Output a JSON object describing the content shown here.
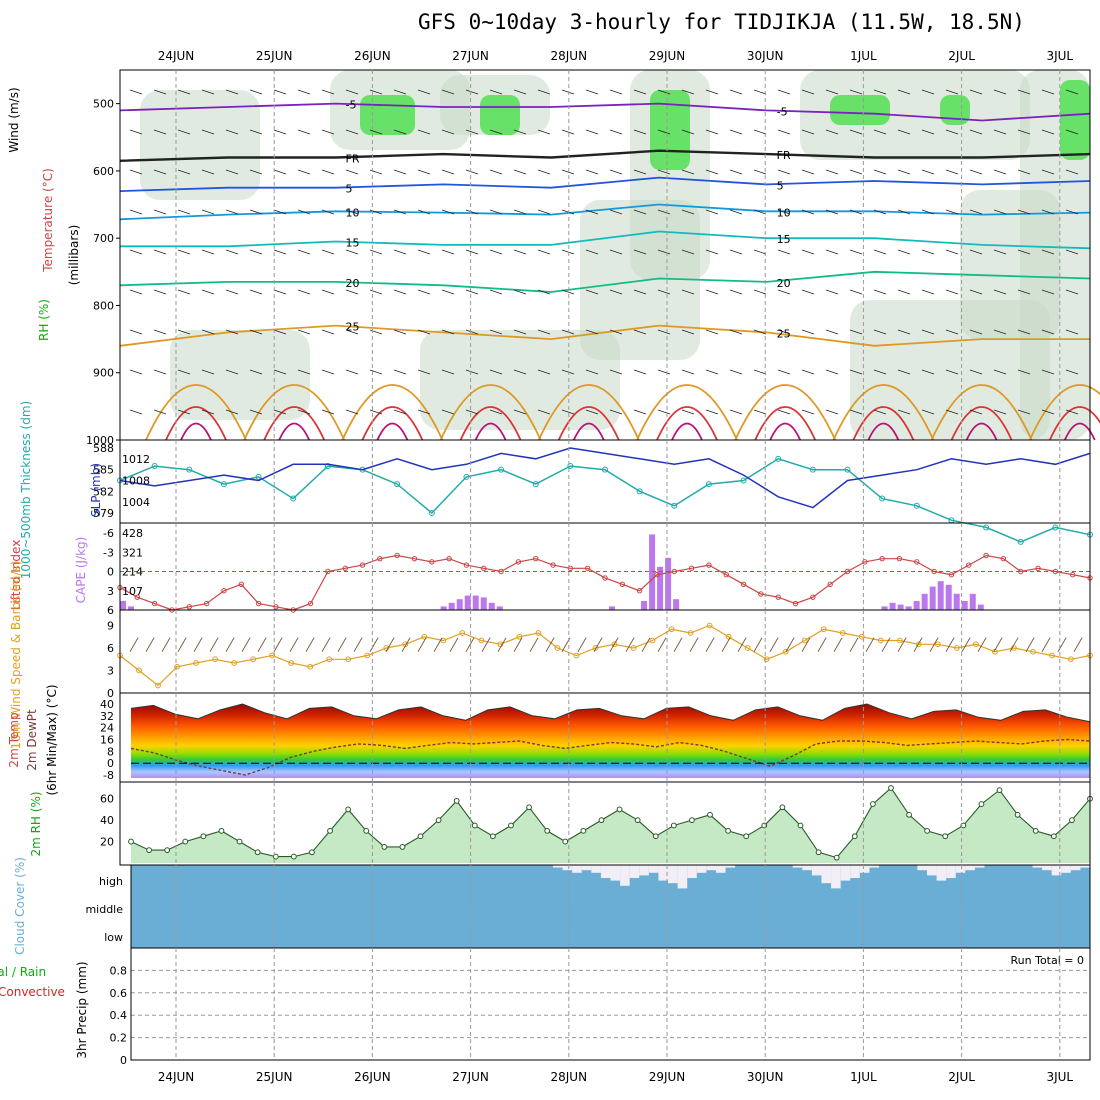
{
  "title": "GFS 0~10day 3-hourly for TIDJIKJA (11.5W, 18.5N)",
  "colors": {
    "frame": "#000000",
    "grid": "#9a9a9a",
    "temp": "#cc4444",
    "cape": "#bb77ee",
    "rh": "#11aa11",
    "thick": "#22aaaa",
    "slp": "#2233bb",
    "wind": "#e0a020",
    "cloud": "#6aaed6",
    "precip_conv": "#dd2222"
  },
  "chart_data": [
    {
      "type": "line",
      "panel": "cross-section",
      "labels": {
        "wind": "Wind (m/s)",
        "temperature": "Temperature (°C)",
        "rh": "RH (%)",
        "units": "(millibars)"
      },
      "x": [
        "24JUN",
        "25JUN",
        "26JUN",
        "27JUN",
        "28JUN",
        "29JUN",
        "30JUN",
        "1JUL",
        "2JUL",
        "3JUL"
      ],
      "yticks": [
        500,
        600,
        700,
        800,
        900,
        1000
      ],
      "ylim": [
        450,
        1000
      ],
      "isotherm_labels": [
        "-5",
        "FR",
        "5",
        "10",
        "15",
        "20",
        "25"
      ],
      "series": [
        {
          "name": "-5",
          "values": [
            510,
            505,
            500,
            505,
            505,
            500,
            510,
            515,
            525,
            515
          ]
        },
        {
          "name": "FR",
          "values": [
            585,
            580,
            580,
            575,
            580,
            570,
            575,
            580,
            580,
            575
          ]
        },
        {
          "name": "5",
          "values": [
            630,
            625,
            625,
            620,
            625,
            610,
            620,
            615,
            620,
            615
          ]
        },
        {
          "name": "10",
          "values": [
            672,
            665,
            660,
            662,
            665,
            650,
            660,
            660,
            665,
            662
          ]
        },
        {
          "name": "15",
          "values": [
            712,
            712,
            705,
            710,
            710,
            690,
            700,
            700,
            710,
            715
          ]
        },
        {
          "name": "20",
          "values": [
            770,
            765,
            765,
            770,
            780,
            760,
            765,
            750,
            755,
            760
          ]
        },
        {
          "name": "25",
          "values": [
            860,
            840,
            830,
            840,
            850,
            830,
            840,
            860,
            850,
            850
          ]
        }
      ]
    },
    {
      "type": "line",
      "panel": "thickness-slp",
      "labels": {
        "thickness": "1000~500mb Thickness (dm)",
        "slp": "SLP (mb)"
      },
      "left_ticks": [
        "588",
        "585",
        "582",
        "579"
      ],
      "right_ticks": [
        "1012",
        "1008",
        "1004"
      ],
      "series": [
        {
          "name": "Thickness",
          "values": [
            583.5,
            585.5,
            585,
            583,
            584,
            581,
            585.5,
            585,
            583,
            579,
            584,
            585,
            583,
            585.5,
            585,
            582,
            580,
            583,
            583.5,
            586.5,
            585,
            585,
            581,
            580,
            578,
            577,
            575,
            577,
            576
          ]
        },
        {
          "name": "SLP",
          "values": [
            1008,
            1007,
            1008,
            1009,
            1008,
            1011,
            1011,
            1010,
            1012,
            1010,
            1011,
            1013,
            1012,
            1014,
            1013,
            1012,
            1011,
            1012,
            1009,
            1005,
            1003,
            1008,
            1009,
            1010,
            1012,
            1011,
            1012,
            1011,
            1013
          ]
        }
      ]
    },
    {
      "type": "bar",
      "panel": "cape-li",
      "labels": {
        "li": "Lifted Index",
        "cape": "CAPE (J/kg)"
      },
      "left_ticks": [
        "-6",
        "-3",
        "0",
        "3",
        "6"
      ],
      "right_ticks": [
        "428",
        "321",
        "214",
        "107"
      ],
      "cape_values": [
        50,
        20,
        0,
        0,
        0,
        0,
        0,
        0,
        0,
        0,
        0,
        0,
        0,
        0,
        0,
        0,
        0,
        0,
        0,
        0,
        0,
        0,
        0,
        0,
        0,
        0,
        0,
        0,
        0,
        0,
        0,
        0,
        0,
        0,
        0,
        0,
        0,
        0,
        0,
        0,
        20,
        40,
        60,
        80,
        80,
        70,
        40,
        20,
        0,
        0,
        0,
        0,
        0,
        0,
        0,
        0,
        0,
        0,
        0,
        0,
        0,
        20,
        0,
        0,
        0,
        50,
        420,
        240,
        290,
        60,
        0,
        0,
        0,
        0,
        0,
        0,
        0,
        0,
        0,
        0,
        0,
        0,
        0,
        0,
        0,
        0,
        0,
        0,
        0,
        0,
        0,
        0,
        0,
        0,
        0,
        20,
        40,
        30,
        20,
        50,
        90,
        130,
        160,
        140,
        90,
        50,
        90,
        30,
        0,
        0,
        0,
        0,
        0,
        0,
        0,
        0,
        0,
        0,
        0,
        0,
        0
      ],
      "li_values": [
        2.5,
        4,
        5,
        6,
        5.5,
        5,
        3,
        2,
        5,
        5.5,
        6,
        5,
        0,
        -0.5,
        -1,
        -2,
        -2.5,
        -2,
        -1.5,
        -2,
        -1,
        -0.5,
        0,
        -1.5,
        -2,
        -1,
        -0.5,
        -0.5,
        1,
        2,
        3,
        0.5,
        0,
        -0.5,
        -1,
        0.5,
        2,
        3.5,
        4,
        5,
        4,
        2,
        0,
        -1.5,
        -2,
        -2,
        -1.5,
        0,
        0.5,
        -1,
        -2.5,
        -2,
        0,
        -0.5,
        0,
        0.5,
        1
      ]
    },
    {
      "type": "line",
      "panel": "wind10m",
      "labels": {
        "wind": "10m Wind Speed & Barbs (m/s)"
      },
      "left_ticks": [
        "9",
        "6",
        "3",
        "0"
      ],
      "ylim": [
        0,
        10
      ],
      "values": [
        5,
        3,
        1,
        3.5,
        4,
        4.5,
        4,
        4.5,
        5,
        4,
        3.5,
        4.5,
        4.5,
        5,
        6,
        6.5,
        7.5,
        7,
        8,
        7,
        6.5,
        7.5,
        8,
        6,
        5,
        6,
        6.5,
        6,
        7,
        8.5,
        8,
        9,
        7.5,
        6,
        4.5,
        5.5,
        7,
        8.5,
        8,
        7.5,
        7,
        7,
        6.5,
        6.5,
        6,
        6.5,
        5.5,
        6,
        5.5,
        5,
        4.5,
        5
      ]
    },
    {
      "type": "area",
      "panel": "temp2m",
      "labels": {
        "temp": "2m Temp",
        "dewpt": "2m DewPt",
        "note": "(6hr Min/Max) (°C)"
      },
      "left_ticks": [
        "40",
        "32",
        "24",
        "16",
        "8",
        "0",
        "-8"
      ],
      "ylim": [
        -10,
        42
      ],
      "temp_values": [
        37,
        39,
        33,
        30,
        36,
        40,
        34,
        30,
        37,
        38,
        32,
        30,
        36,
        38,
        32,
        29,
        36,
        38,
        32,
        30,
        36,
        37,
        32,
        30,
        37,
        38,
        32,
        29,
        36,
        38,
        32,
        29,
        37,
        40,
        34,
        30,
        35,
        36,
        31,
        29,
        35,
        36,
        31,
        28
      ],
      "dew_values": [
        10,
        7,
        2,
        -2,
        -5,
        -8,
        -3,
        4,
        8,
        11,
        13,
        12,
        10,
        12,
        14,
        13,
        14,
        15,
        12,
        10,
        12,
        14,
        13,
        11,
        14,
        12,
        8,
        3,
        -2,
        5,
        13,
        15,
        15,
        14,
        12,
        13,
        14,
        15,
        14,
        13,
        15,
        16,
        15
      ]
    },
    {
      "type": "area",
      "panel": "rh2m",
      "labels": {
        "rh": "2m RH (%)"
      },
      "left_ticks": [
        "60",
        "40",
        "20"
      ],
      "ylim": [
        0,
        70
      ],
      "values": [
        20,
        12,
        12,
        20,
        25,
        30,
        20,
        10,
        6,
        6,
        10,
        30,
        50,
        30,
        15,
        15,
        25,
        40,
        58,
        35,
        25,
        35,
        52,
        30,
        20,
        30,
        40,
        50,
        40,
        25,
        35,
        40,
        45,
        30,
        25,
        35,
        52,
        35,
        10,
        5,
        25,
        55,
        70,
        45,
        30,
        25,
        35,
        55,
        68,
        45,
        30,
        25,
        40,
        60
      ]
    },
    {
      "type": "heatmap",
      "panel": "cloud",
      "labels": {
        "cloud": "Cloud Cover (%)"
      },
      "levels": [
        "high",
        "middle",
        "low"
      ],
      "high_values": [
        0,
        0,
        0,
        0,
        0,
        0,
        0,
        0,
        0,
        0,
        0,
        0,
        0,
        0,
        0,
        0,
        0,
        0,
        0,
        0,
        0,
        0,
        0,
        0,
        0,
        0,
        0,
        0,
        0,
        0,
        0,
        0,
        0,
        0,
        0,
        0,
        0,
        0,
        0,
        0,
        0,
        0,
        0,
        0,
        10,
        20,
        30,
        20,
        30,
        50,
        60,
        80,
        50,
        40,
        30,
        60,
        70,
        90,
        50,
        30,
        20,
        30,
        10,
        0,
        0,
        0,
        0,
        0,
        0,
        10,
        20,
        40,
        70,
        90,
        60,
        50,
        30,
        10,
        0,
        0,
        0,
        0,
        20,
        40,
        60,
        50,
        30,
        20,
        10,
        0,
        0,
        0,
        0,
        0,
        10,
        20,
        40,
        30,
        20,
        10
      ],
      "mid_values": [
        0,
        0,
        0,
        0,
        0,
        0,
        0,
        0,
        0,
        0,
        0,
        0,
        0,
        0,
        0,
        0,
        0,
        0,
        0,
        0,
        0,
        0,
        0,
        0,
        0,
        0,
        0,
        0,
        0,
        0,
        0,
        0,
        0,
        0,
        0,
        0,
        0,
        0,
        0,
        0,
        0,
        0,
        0,
        0,
        0,
        0,
        0,
        0,
        0,
        0,
        0,
        0,
        0,
        0,
        0,
        0,
        0,
        0,
        0,
        0,
        0,
        0,
        0,
        0,
        0,
        0,
        0,
        0,
        0,
        0,
        0,
        0,
        0,
        0,
        0,
        0,
        0,
        0,
        0,
        0,
        0,
        0,
        0,
        0,
        0,
        0,
        0,
        0,
        0,
        0,
        0,
        0,
        0,
        0,
        0,
        0,
        0,
        0,
        0,
        0
      ]
    },
    {
      "type": "line",
      "panel": "precip",
      "labels": {
        "total": "Total / Rain",
        "conv": "Convective",
        "precip": "3hr Precip (mm)",
        "run_total": "Run Total = 0"
      },
      "left_ticks": [
        "0.8",
        "0.6",
        "0.4",
        "0.2",
        "0"
      ],
      "ylim": [
        0,
        1
      ],
      "values": []
    }
  ]
}
